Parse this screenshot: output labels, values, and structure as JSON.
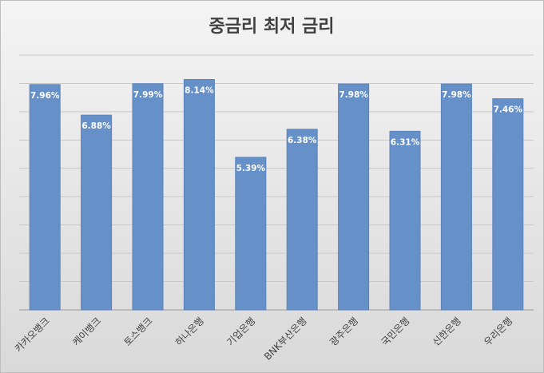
{
  "chart_data": {
    "type": "bar",
    "title": "중금리 최저 금리",
    "categories": [
      "카카오뱅크",
      "케이뱅크",
      "토스뱅크",
      "하나은행",
      "기업은행",
      "BNK부산은행",
      "광주은행",
      "국민은행",
      "신한은행",
      "우리은행"
    ],
    "values": [
      7.96,
      6.88,
      7.99,
      8.14,
      5.39,
      6.38,
      7.98,
      6.31,
      7.98,
      7.46
    ],
    "value_labels": [
      "7.96%",
      "6.88%",
      "7.99%",
      "8.14%",
      "5.39%",
      "6.38%",
      "7.98%",
      "6.31%",
      "7.98%",
      "7.46%"
    ],
    "color": "#6690c8",
    "ylim": [
      0,
      9
    ],
    "yticks": [
      0,
      1,
      2,
      3,
      4,
      5,
      6,
      7,
      8,
      9
    ],
    "grid": true
  }
}
